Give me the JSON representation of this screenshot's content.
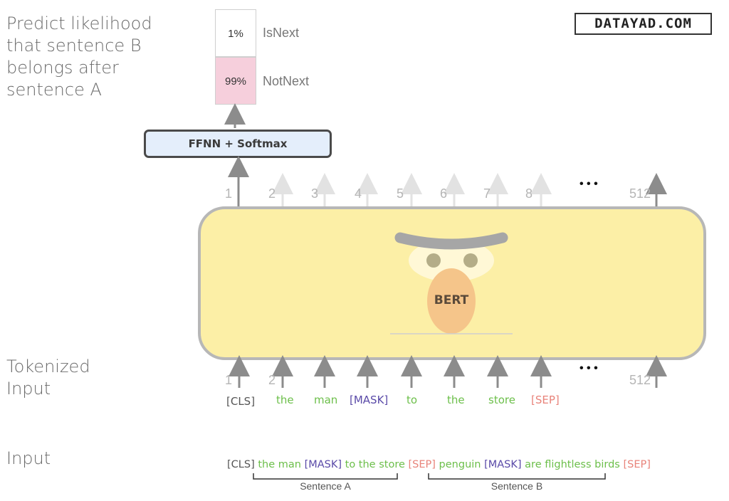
{
  "watermark": "DATAYAD.COM",
  "labels": {
    "predict": [
      "Predict likelihood",
      "that sentence B",
      "belongs after",
      "sentence A"
    ],
    "tokenized": [
      "Tokenized",
      "Input"
    ],
    "input": "Input"
  },
  "output": {
    "isnext_pct": "1%",
    "isnext_label": "IsNext",
    "notnext_pct": "99%",
    "notnext_label": "NotNext"
  },
  "ffnn_label": "FFNN + Softmax",
  "bert_label": "BERT",
  "positions_top": [
    "1",
    "2",
    "3",
    "4",
    "5",
    "6",
    "7",
    "8",
    "512"
  ],
  "positions_bottom": [
    "1",
    "2",
    "512"
  ],
  "ellipsis": "• • •",
  "tokens": [
    {
      "text": "[CLS]",
      "kind": "cls"
    },
    {
      "text": "the",
      "kind": "word"
    },
    {
      "text": "man",
      "kind": "word"
    },
    {
      "text": "[MASK]",
      "kind": "mask"
    },
    {
      "text": "to",
      "kind": "word"
    },
    {
      "text": "the",
      "kind": "word"
    },
    {
      "text": "store",
      "kind": "word"
    },
    {
      "text": "[SEP]",
      "kind": "sep"
    }
  ],
  "input_sequence": [
    {
      "text": "[CLS]",
      "kind": "cls"
    },
    {
      "text": "the man",
      "kind": "word"
    },
    {
      "text": "[MASK]",
      "kind": "mask"
    },
    {
      "text": "to the store",
      "kind": "word"
    },
    {
      "text": "[SEP]",
      "kind": "sep"
    },
    {
      "text": "penguin",
      "kind": "word"
    },
    {
      "text": "[MASK]",
      "kind": "mask"
    },
    {
      "text": "are flightless birds",
      "kind": "word"
    },
    {
      "text": "[SEP]",
      "kind": "sep"
    }
  ],
  "sentence_a": "Sentence A",
  "sentence_b": "Sentence B",
  "colors": {
    "cls": "#555555",
    "word": "#6cbf4a",
    "mask": "#5a4aa8",
    "sep": "#e8837a",
    "notnext_fill": "#f6cfdc",
    "bert_fill": "#fcefa6",
    "ffnn_fill": "#e4eefb"
  }
}
